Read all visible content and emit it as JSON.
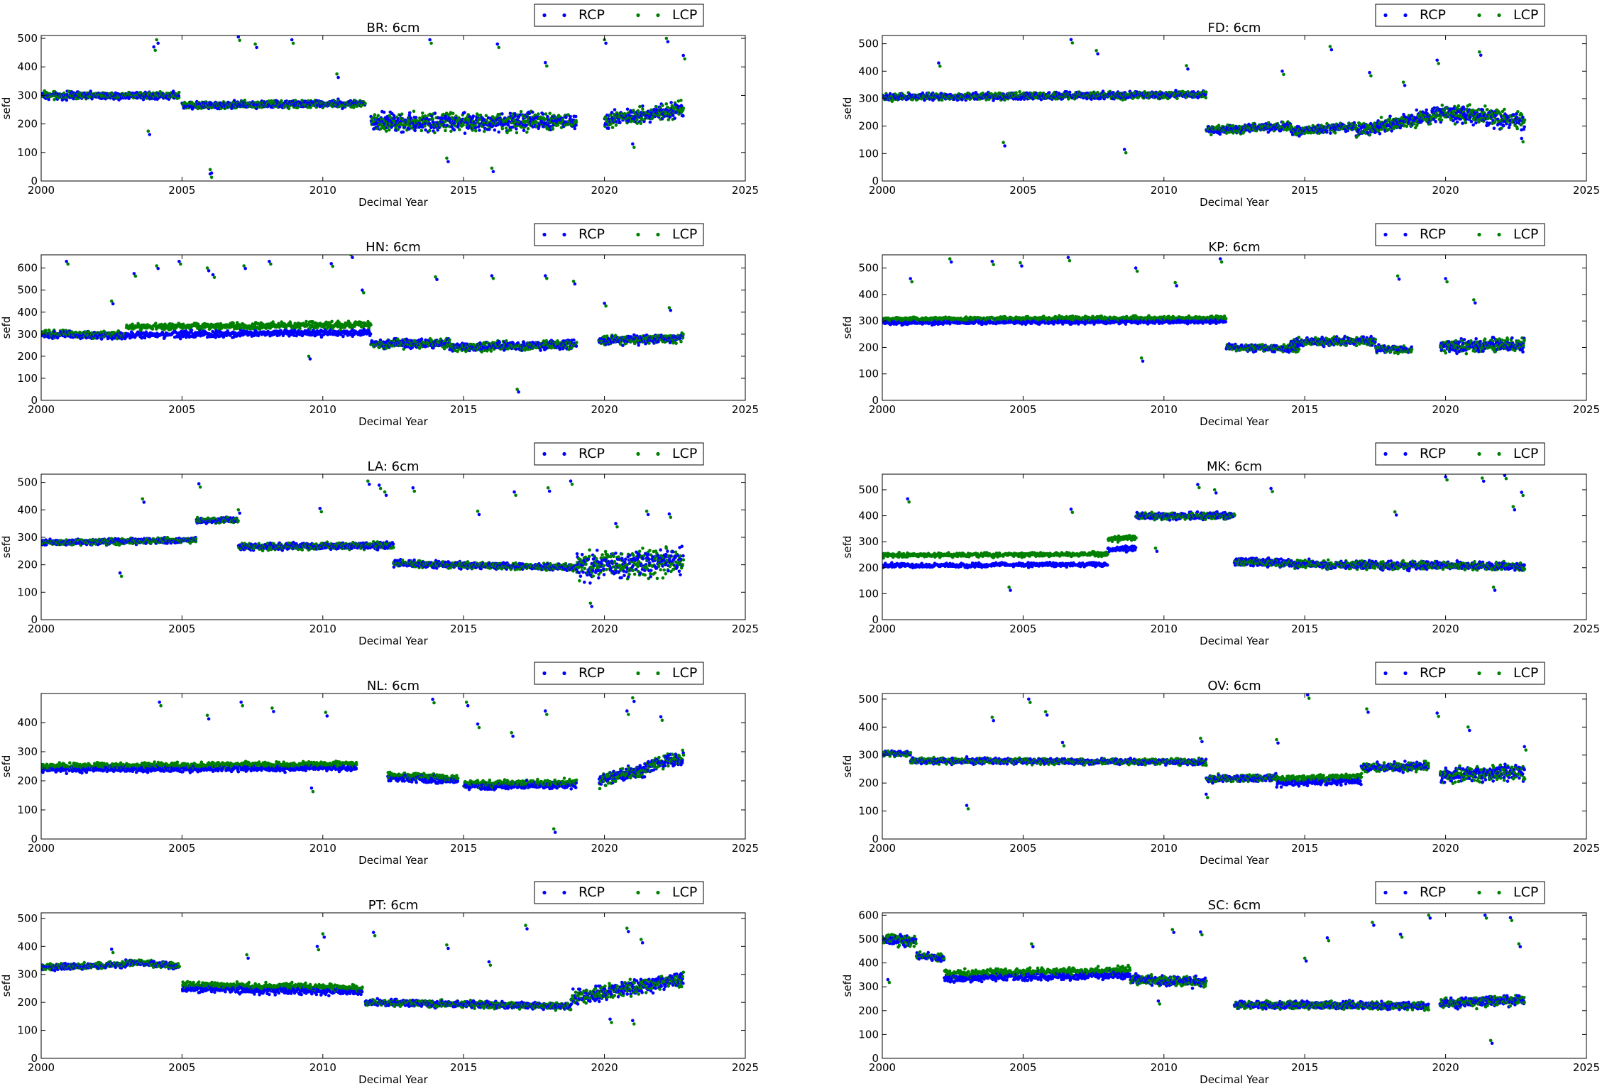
{
  "figure": {
    "xlabel": "Decimal Year",
    "ylabel": "sefd",
    "legend": [
      "RCP",
      "LCP"
    ],
    "colors": {
      "RCP": "#0000ff",
      "LCP": "#008000"
    }
  },
  "chart_data": [
    {
      "type": "scatter",
      "title": "BR: 6cm",
      "xlabel": "Decimal Year",
      "ylabel": "sefd",
      "xlim": [
        2000,
        2025
      ],
      "ylim": [
        0,
        510
      ],
      "xticks": [
        2000,
        2005,
        2010,
        2015,
        2020,
        2025
      ],
      "yticks": [
        0,
        100,
        200,
        300,
        400,
        500
      ],
      "legend": [
        "RCP",
        "LCP"
      ],
      "legend_position": "top-right",
      "segments": [
        [
          2000,
          2004.9,
          300,
          300,
          12,
          0
        ],
        [
          2005,
          2011.5,
          265,
          272,
          12,
          0
        ],
        [
          2011.7,
          2019,
          205,
          210,
          30,
          0
        ],
        [
          2020,
          2022.8,
          215,
          250,
          25,
          0
        ]
      ],
      "outliers": [
        [
          2001.2,
          300
        ],
        [
          2003.8,
          175
        ],
        [
          2004.0,
          470
        ],
        [
          2004.1,
          495
        ],
        [
          2006.0,
          25
        ],
        [
          2006.0,
          40
        ],
        [
          2007.0,
          505
        ],
        [
          2007.6,
          480
        ],
        [
          2008.9,
          495
        ],
        [
          2010.5,
          375
        ],
        [
          2013.8,
          495
        ],
        [
          2014.4,
          80
        ],
        [
          2016.2,
          480
        ],
        [
          2016.0,
          45
        ],
        [
          2017.9,
          415
        ],
        [
          2020.0,
          495
        ],
        [
          2021.0,
          130
        ],
        [
          2022.2,
          500
        ],
        [
          2022.8,
          440
        ]
      ]
    },
    {
      "type": "scatter",
      "title": "FD: 6cm",
      "xlabel": "Decimal Year",
      "ylabel": "sefd",
      "xlim": [
        2000,
        2025
      ],
      "ylim": [
        0,
        530
      ],
      "xticks": [
        2000,
        2005,
        2010,
        2015,
        2020,
        2025
      ],
      "yticks": [
        0,
        100,
        200,
        300,
        400,
        500
      ],
      "legend": [
        "RCP",
        "LCP"
      ],
      "legend_position": "top-right",
      "segments": [
        [
          2000,
          2011.5,
          305,
          315,
          12,
          0
        ],
        [
          2011.5,
          2014.5,
          185,
          200,
          15,
          0
        ],
        [
          2014.5,
          2016.8,
          180,
          200,
          15,
          0
        ],
        [
          2016.8,
          2019.5,
          185,
          235,
          25,
          0
        ],
        [
          2019.5,
          2022.8,
          250,
          220,
          30,
          0
        ]
      ],
      "outliers": [
        [
          2002.0,
          430
        ],
        [
          2004.3,
          140
        ],
        [
          2006.7,
          515
        ],
        [
          2007.6,
          475
        ],
        [
          2008.6,
          115
        ],
        [
          2010.8,
          420
        ],
        [
          2014.2,
          400
        ],
        [
          2015.9,
          490
        ],
        [
          2017.3,
          395
        ],
        [
          2018.5,
          360
        ],
        [
          2019.7,
          440
        ],
        [
          2021.2,
          470
        ],
        [
          2022.7,
          155
        ]
      ]
    },
    {
      "type": "scatter",
      "title": "HN: 6cm",
      "xlabel": "Decimal Year",
      "ylabel": "sefd",
      "xlim": [
        2000,
        2025
      ],
      "ylim": [
        0,
        660
      ],
      "xticks": [
        2000,
        2005,
        2010,
        2015,
        2020,
        2025
      ],
      "yticks": [
        0,
        100,
        200,
        300,
        400,
        500,
        600
      ],
      "legend": [
        "RCP",
        "LCP"
      ],
      "legend_position": "top-right",
      "segments": [
        [
          2000,
          2003,
          300,
          295,
          15,
          5
        ],
        [
          2003,
          2011.7,
          315,
          325,
          15,
          35
        ],
        [
          2011.7,
          2014.5,
          255,
          260,
          20,
          0
        ],
        [
          2014.5,
          2019,
          240,
          255,
          20,
          0
        ],
        [
          2019.8,
          2022.8,
          270,
          285,
          20,
          0
        ]
      ],
      "outliers": [
        [
          2000.9,
          630
        ],
        [
          2002.5,
          450
        ],
        [
          2003.3,
          575
        ],
        [
          2004.1,
          610
        ],
        [
          2004.9,
          630
        ],
        [
          2005.9,
          600
        ],
        [
          2006.1,
          570
        ],
        [
          2007.2,
          610
        ],
        [
          2008.1,
          630
        ],
        [
          2009.5,
          200
        ],
        [
          2010.3,
          620
        ],
        [
          2011.0,
          660
        ],
        [
          2011.4,
          500
        ],
        [
          2014.0,
          560
        ],
        [
          2016.0,
          565
        ],
        [
          2016.9,
          50
        ],
        [
          2017.9,
          565
        ],
        [
          2018.9,
          540
        ],
        [
          2020.0,
          440
        ],
        [
          2022.3,
          420
        ]
      ]
    },
    {
      "type": "scatter",
      "title": "KP: 6cm",
      "xlabel": "Decimal Year",
      "ylabel": "sefd",
      "xlim": [
        2000,
        2025
      ],
      "ylim": [
        0,
        550
      ],
      "xticks": [
        2000,
        2005,
        2010,
        2015,
        2020,
        2025
      ],
      "yticks": [
        0,
        100,
        200,
        300,
        400,
        500
      ],
      "legend": [
        "RCP",
        "LCP"
      ],
      "legend_position": "top-right",
      "segments": [
        [
          2000,
          2012.2,
          300,
          305,
          8,
          12
        ],
        [
          2012.2,
          2014.8,
          200,
          195,
          12,
          0
        ],
        [
          2014.5,
          2017.5,
          220,
          225,
          15,
          0
        ],
        [
          2017.5,
          2018.8,
          195,
          190,
          12,
          0
        ],
        [
          2019.8,
          2022.8,
          205,
          210,
          25,
          0
        ]
      ],
      "outliers": [
        [
          2001.0,
          460
        ],
        [
          2002.4,
          535
        ],
        [
          2003.9,
          525
        ],
        [
          2004.9,
          520
        ],
        [
          2006.6,
          540
        ],
        [
          2009.2,
          160
        ],
        [
          2009.0,
          500
        ],
        [
          2010.4,
          445
        ],
        [
          2012.0,
          535
        ],
        [
          2018.3,
          470
        ],
        [
          2020.0,
          460
        ],
        [
          2021.0,
          380
        ]
      ]
    },
    {
      "type": "scatter",
      "title": "LA: 6cm",
      "xlabel": "Decimal Year",
      "ylabel": "sefd",
      "xlim": [
        2000,
        2025
      ],
      "ylim": [
        0,
        530
      ],
      "xticks": [
        2000,
        2005,
        2010,
        2015,
        2020,
        2025
      ],
      "yticks": [
        0,
        100,
        200,
        300,
        400,
        500
      ],
      "legend": [
        "RCP",
        "LCP"
      ],
      "legend_position": "top-right",
      "segments": [
        [
          2000,
          2005.5,
          280,
          290,
          10,
          0
        ],
        [
          2005.5,
          2007,
          360,
          365,
          10,
          0
        ],
        [
          2007,
          2012.5,
          265,
          270,
          12,
          0
        ],
        [
          2012.5,
          2019,
          205,
          190,
          12,
          0
        ],
        [
          2019,
          2022.8,
          200,
          210,
          50,
          0
        ]
      ],
      "outliers": [
        [
          2002.8,
          170
        ],
        [
          2003.6,
          440
        ],
        [
          2005.6,
          495
        ],
        [
          2007.0,
          400
        ],
        [
          2009.9,
          405
        ],
        [
          2011.6,
          505
        ],
        [
          2012.0,
          490
        ],
        [
          2012.2,
          465
        ],
        [
          2013.2,
          480
        ],
        [
          2015.5,
          395
        ],
        [
          2016.8,
          465
        ],
        [
          2018.0,
          480
        ],
        [
          2018.8,
          505
        ],
        [
          2019.5,
          60
        ],
        [
          2020.4,
          350
        ],
        [
          2021.5,
          395
        ],
        [
          2022.3,
          385
        ]
      ]
    },
    {
      "type": "scatter",
      "title": "MK: 6cm",
      "xlabel": "Decimal Year",
      "ylabel": "sefd",
      "xlim": [
        2000,
        2025
      ],
      "ylim": [
        0,
        560
      ],
      "xticks": [
        2000,
        2005,
        2010,
        2015,
        2020,
        2025
      ],
      "yticks": [
        0,
        100,
        200,
        300,
        400,
        500
      ],
      "legend": [
        "RCP",
        "LCP"
      ],
      "legend_position": "top-right",
      "segments": [
        [
          2000,
          2008,
          228,
          232,
          8,
          40
        ],
        [
          2008,
          2009,
          290,
          295,
          10,
          40
        ],
        [
          2009,
          2012.5,
          400,
          400,
          12,
          0
        ],
        [
          2012.5,
          2016,
          225,
          210,
          15,
          0
        ],
        [
          2016,
          2022.8,
          210,
          205,
          15,
          0
        ]
      ],
      "outliers": [
        [
          2000.9,
          465
        ],
        [
          2004.5,
          125
        ],
        [
          2006.7,
          425
        ],
        [
          2009.7,
          275
        ],
        [
          2011.2,
          520
        ],
        [
          2011.8,
          500
        ],
        [
          2013.8,
          505
        ],
        [
          2018.2,
          415
        ],
        [
          2020.0,
          550
        ],
        [
          2021.3,
          545
        ],
        [
          2022.1,
          555
        ],
        [
          2022.4,
          435
        ],
        [
          2022.7,
          490
        ],
        [
          2021.7,
          125
        ]
      ]
    },
    {
      "type": "scatter",
      "title": "NL: 6cm",
      "xlabel": "Decimal Year",
      "ylabel": "sefd",
      "xlim": [
        2000,
        2025
      ],
      "ylim": [
        0,
        500
      ],
      "xticks": [
        2000,
        2005,
        2010,
        2015,
        2020,
        2025
      ],
      "yticks": [
        0,
        100,
        200,
        300,
        400
      ],
      "legend": [
        "RCP",
        "LCP"
      ],
      "legend_position": "top-right",
      "segments": [
        [
          2000,
          2011.2,
          245,
          250,
          10,
          12
        ],
        [
          2012.3,
          2014.8,
          215,
          205,
          12,
          8
        ],
        [
          2015,
          2019,
          185,
          190,
          12,
          8
        ],
        [
          2019.8,
          2021.5,
          200,
          240,
          20,
          0
        ],
        [
          2021.5,
          2022.8,
          250,
          280,
          20,
          0
        ]
      ],
      "outliers": [
        [
          2004.2,
          470
        ],
        [
          2005.9,
          425
        ],
        [
          2007.1,
          470
        ],
        [
          2008.2,
          450
        ],
        [
          2009.6,
          175
        ],
        [
          2010.1,
          435
        ],
        [
          2013.9,
          480
        ],
        [
          2015.1,
          470
        ],
        [
          2015.5,
          395
        ],
        [
          2016.7,
          365
        ],
        [
          2017.9,
          440
        ],
        [
          2018.2,
          35
        ],
        [
          2020.8,
          440
        ],
        [
          2021.0,
          485
        ],
        [
          2022.0,
          420
        ]
      ]
    },
    {
      "type": "scatter",
      "title": "OV: 6cm",
      "xlabel": "Decimal Year",
      "ylabel": "sefd",
      "xlim": [
        2000,
        2025
      ],
      "ylim": [
        0,
        520
      ],
      "xticks": [
        2000,
        2005,
        2010,
        2015,
        2020,
        2025
      ],
      "yticks": [
        0,
        100,
        200,
        300,
        400,
        500
      ],
      "legend": [
        "RCP",
        "LCP"
      ],
      "legend_position": "top-right",
      "segments": [
        [
          2000,
          2001,
          305,
          305,
          8,
          0
        ],
        [
          2001,
          2011.5,
          280,
          275,
          10,
          0
        ],
        [
          2011.5,
          2014,
          215,
          220,
          12,
          0
        ],
        [
          2014,
          2017,
          205,
          215,
          12,
          15
        ],
        [
          2017,
          2019.4,
          255,
          260,
          15,
          0
        ],
        [
          2019.8,
          2022.8,
          225,
          240,
          25,
          0
        ]
      ],
      "outliers": [
        [
          2003.0,
          120
        ],
        [
          2003.9,
          435
        ],
        [
          2005.2,
          500
        ],
        [
          2005.8,
          455
        ],
        [
          2006.4,
          345
        ],
        [
          2011.3,
          360
        ],
        [
          2011.5,
          160
        ],
        [
          2014.0,
          355
        ],
        [
          2015.1,
          515
        ],
        [
          2017.2,
          465
        ],
        [
          2019.7,
          450
        ],
        [
          2020.8,
          400
        ],
        [
          2022.8,
          330
        ]
      ]
    },
    {
      "type": "scatter",
      "title": "PT: 6cm",
      "xlabel": "Decimal Year",
      "ylabel": "sefd",
      "xlim": [
        2000,
        2025
      ],
      "ylim": [
        0,
        520
      ],
      "xticks": [
        2000,
        2005,
        2010,
        2015,
        2020,
        2025
      ],
      "yticks": [
        0,
        100,
        200,
        300,
        400,
        500
      ],
      "legend": [
        "RCP",
        "LCP"
      ],
      "legend_position": "top-right",
      "segments": [
        [
          2000,
          2003,
          325,
          335,
          10,
          0
        ],
        [
          2003,
          2004.9,
          345,
          330,
          10,
          0
        ],
        [
          2005,
          2011.4,
          255,
          245,
          12,
          15
        ],
        [
          2011.5,
          2018.8,
          200,
          185,
          12,
          0
        ],
        [
          2018.8,
          2022.8,
          215,
          285,
          25,
          0
        ]
      ],
      "outliers": [
        [
          2002.5,
          390
        ],
        [
          2007.3,
          370
        ],
        [
          2009.8,
          400
        ],
        [
          2010.0,
          445
        ],
        [
          2011.8,
          450
        ],
        [
          2014.4,
          405
        ],
        [
          2015.9,
          345
        ],
        [
          2017.2,
          475
        ],
        [
          2020.2,
          140
        ],
        [
          2020.8,
          465
        ],
        [
          2021.0,
          135
        ],
        [
          2021.3,
          425
        ]
      ]
    },
    {
      "type": "scatter",
      "title": "SC: 6cm",
      "xlabel": "Decimal Year",
      "ylabel": "sefd",
      "xlim": [
        2000,
        2025
      ],
      "ylim": [
        0,
        610
      ],
      "xticks": [
        2000,
        2005,
        2010,
        2015,
        2020,
        2025
      ],
      "yticks": [
        0,
        100,
        200,
        300,
        400,
        500,
        600
      ],
      "legend": [
        "RCP",
        "LCP"
      ],
      "legend_position": "top-right",
      "segments": [
        [
          2000,
          2001.2,
          500,
          490,
          20,
          0
        ],
        [
          2001.2,
          2002.2,
          430,
          420,
          15,
          0
        ],
        [
          2002.2,
          2008.8,
          345,
          360,
          15,
          20
        ],
        [
          2008.8,
          2011.5,
          330,
          320,
          20,
          0
        ],
        [
          2012.5,
          2019.4,
          225,
          220,
          15,
          0
        ],
        [
          2019.8,
          2022.8,
          230,
          245,
          20,
          0
        ]
      ],
      "outliers": [
        [
          2000.2,
          330
        ],
        [
          2005.3,
          480
        ],
        [
          2009.8,
          240
        ],
        [
          2010.3,
          540
        ],
        [
          2011.3,
          530
        ],
        [
          2015.0,
          420
        ],
        [
          2015.8,
          505
        ],
        [
          2017.4,
          570
        ],
        [
          2018.4,
          520
        ],
        [
          2019.4,
          600
        ],
        [
          2021.4,
          600
        ],
        [
          2021.6,
          75
        ],
        [
          2022.3,
          590
        ],
        [
          2022.6,
          480
        ]
      ]
    }
  ]
}
